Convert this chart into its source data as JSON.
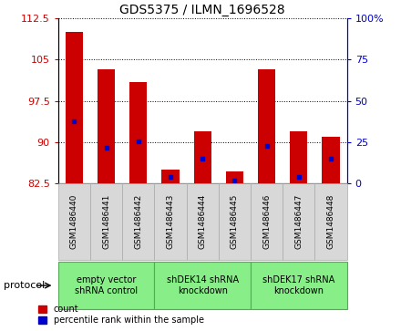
{
  "title": "GDS5375 / ILMN_1696528",
  "samples": [
    "GSM1486440",
    "GSM1486441",
    "GSM1486442",
    "GSM1486443",
    "GSM1486444",
    "GSM1486445",
    "GSM1486446",
    "GSM1486447",
    "GSM1486448"
  ],
  "count_values": [
    110.0,
    103.2,
    101.0,
    85.0,
    92.0,
    84.8,
    103.2,
    92.0,
    91.0
  ],
  "percentile_values": [
    93.8,
    89.0,
    90.2,
    83.8,
    87.0,
    83.0,
    89.3,
    83.8,
    87.0
  ],
  "bar_bottom": 82.5,
  "ylim_left": [
    82.5,
    112.5
  ],
  "ylim_right": [
    0,
    100
  ],
  "yticks_left": [
    82.5,
    90.0,
    97.5,
    105.0,
    112.5
  ],
  "yticks_right": [
    0,
    25,
    50,
    75,
    100
  ],
  "ytick_labels_left": [
    "82.5",
    "90",
    "97.5",
    "105",
    "112.5"
  ],
  "ytick_labels_right": [
    "0",
    "25",
    "50",
    "75",
    "100%"
  ],
  "bar_color": "#cc0000",
  "percentile_color": "#0000cc",
  "groups": [
    {
      "label": "empty vector\nshRNA control",
      "start": 0,
      "end": 3
    },
    {
      "label": "shDEK14 shRNA\nknockdown",
      "start": 3,
      "end": 6
    },
    {
      "label": "shDEK17 shRNA\nknockdown",
      "start": 6,
      "end": 9
    }
  ],
  "protocol_label": "protocol",
  "legend_count_label": "count",
  "legend_percentile_label": "percentile rank within the sample",
  "plot_bg_color": "#ffffff",
  "tick_color_left": "#cc0000",
  "tick_color_right": "#0000cc",
  "sample_box_color": "#d8d8d8",
  "sample_box_edge": "#aaaaaa",
  "group_box_color": "#88ee88",
  "group_box_edge": "#55aa55"
}
